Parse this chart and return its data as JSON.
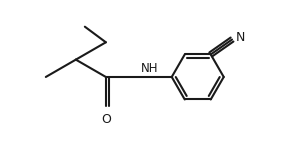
{
  "background": "#ffffff",
  "bond_color": "#1a1a1a",
  "text_color": "#1a1a1a",
  "line_width": 1.5,
  "font_size": 8.5,
  "fig_width": 2.88,
  "fig_height": 1.47,
  "dpi": 100,
  "xlim": [
    0,
    8.0
  ],
  "ylim": [
    0,
    4.2
  ]
}
